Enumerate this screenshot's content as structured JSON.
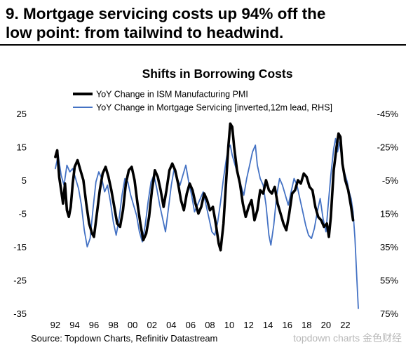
{
  "headline": {
    "line1": "9. Mortgage servicing costs up 94% off the",
    "line2": "low point: from tailwind to headwind."
  },
  "source": "Source: Topdown Charts, Refinitiv Datastream",
  "watermark": "topdown charts 金色财经",
  "chart_data": {
    "type": "line",
    "title": "Shifts in Borrowing Costs",
    "x_tick_labels": [
      "92",
      "94",
      "96",
      "98",
      "00",
      "02",
      "04",
      "06",
      "08",
      "10",
      "12",
      "14",
      "16",
      "18",
      "20",
      "22"
    ],
    "xlim": [
      1991.5,
      2024.0
    ],
    "ylim_left": [
      -35,
      25
    ],
    "yticks_left": [
      25,
      15,
      5,
      -5,
      -15,
      -25,
      -35
    ],
    "ylim_right": [
      75,
      -45
    ],
    "yticks_right_labels": [
      "-45%",
      "-25%",
      "-5%",
      "15%",
      "35%",
      "55%",
      "75%"
    ],
    "right_axis_inverted": true,
    "grid": false,
    "legend_position": "top",
    "series": [
      {
        "name": "YoY Change in ISM Manufacturing PMI",
        "axis": "left",
        "color": "#000000",
        "points": [
          [
            1992.0,
            12
          ],
          [
            1992.2,
            14
          ],
          [
            1992.4,
            6
          ],
          [
            1992.6,
            2
          ],
          [
            1992.8,
            -2
          ],
          [
            1993.0,
            4
          ],
          [
            1993.2,
            -4
          ],
          [
            1993.4,
            -6
          ],
          [
            1993.6,
            -3
          ],
          [
            1993.8,
            4
          ],
          [
            1994.0,
            9
          ],
          [
            1994.3,
            11
          ],
          [
            1994.6,
            8
          ],
          [
            1994.9,
            5
          ],
          [
            1995.2,
            -2
          ],
          [
            1995.5,
            -8
          ],
          [
            1995.8,
            -11
          ],
          [
            1996.0,
            -12
          ],
          [
            1996.3,
            -5
          ],
          [
            1996.6,
            2
          ],
          [
            1996.9,
            7
          ],
          [
            1997.2,
            9
          ],
          [
            1997.5,
            6
          ],
          [
            1997.8,
            2
          ],
          [
            1998.1,
            -3
          ],
          [
            1998.4,
            -8
          ],
          [
            1998.7,
            -9
          ],
          [
            1999.0,
            -4
          ],
          [
            1999.3,
            4
          ],
          [
            1999.6,
            8
          ],
          [
            1999.9,
            9
          ],
          [
            2000.2,
            5
          ],
          [
            2000.5,
            -2
          ],
          [
            2000.8,
            -8
          ],
          [
            2001.1,
            -13
          ],
          [
            2001.4,
            -11
          ],
          [
            2001.7,
            -6
          ],
          [
            2002.0,
            2
          ],
          [
            2002.3,
            8
          ],
          [
            2002.6,
            6
          ],
          [
            2002.9,
            2
          ],
          [
            2003.2,
            -3
          ],
          [
            2003.5,
            2
          ],
          [
            2003.8,
            8
          ],
          [
            2004.1,
            10
          ],
          [
            2004.4,
            8
          ],
          [
            2004.7,
            4
          ],
          [
            2005.0,
            -1
          ],
          [
            2005.3,
            -4
          ],
          [
            2005.6,
            1
          ],
          [
            2005.9,
            4
          ],
          [
            2006.2,
            2
          ],
          [
            2006.5,
            -2
          ],
          [
            2006.8,
            -5
          ],
          [
            2007.1,
            -3
          ],
          [
            2007.4,
            1
          ],
          [
            2007.7,
            -1
          ],
          [
            2008.0,
            -4
          ],
          [
            2008.3,
            -3
          ],
          [
            2008.6,
            -8
          ],
          [
            2008.9,
            -14
          ],
          [
            2009.1,
            -16
          ],
          [
            2009.4,
            -8
          ],
          [
            2009.7,
            6
          ],
          [
            2009.9,
            15
          ],
          [
            2010.1,
            22
          ],
          [
            2010.3,
            21
          ],
          [
            2010.5,
            15
          ],
          [
            2010.8,
            8
          ],
          [
            2011.1,
            4
          ],
          [
            2011.4,
            -2
          ],
          [
            2011.7,
            -6
          ],
          [
            2012.0,
            -3
          ],
          [
            2012.3,
            -1
          ],
          [
            2012.6,
            -7
          ],
          [
            2012.9,
            -4
          ],
          [
            2013.2,
            2
          ],
          [
            2013.5,
            1
          ],
          [
            2013.8,
            5
          ],
          [
            2014.1,
            2
          ],
          [
            2014.4,
            1
          ],
          [
            2014.7,
            3
          ],
          [
            2015.0,
            -2
          ],
          [
            2015.3,
            -5
          ],
          [
            2015.6,
            -8
          ],
          [
            2015.9,
            -10
          ],
          [
            2016.2,
            -5
          ],
          [
            2016.5,
            1
          ],
          [
            2016.8,
            2
          ],
          [
            2017.1,
            5
          ],
          [
            2017.4,
            4
          ],
          [
            2017.7,
            7
          ],
          [
            2018.0,
            6
          ],
          [
            2018.3,
            3
          ],
          [
            2018.6,
            2
          ],
          [
            2018.9,
            -3
          ],
          [
            2019.2,
            -6
          ],
          [
            2019.5,
            -7
          ],
          [
            2019.8,
            -9
          ],
          [
            2020.1,
            -8
          ],
          [
            2020.3,
            -12
          ],
          [
            2020.5,
            -6
          ],
          [
            2020.8,
            8
          ],
          [
            2021.1,
            15
          ],
          [
            2021.3,
            19
          ],
          [
            2021.5,
            18
          ],
          [
            2021.7,
            10
          ],
          [
            2022.0,
            5
          ],
          [
            2022.3,
            2
          ],
          [
            2022.6,
            -3
          ],
          [
            2022.8,
            -7
          ]
        ]
      },
      {
        "name": "YoY Change in Mortgage Servicing [inverted,12m lead, RHS]",
        "axis": "right",
        "color": "#4472c4",
        "points": [
          [
            1992.0,
            -12
          ],
          [
            1992.3,
            -20
          ],
          [
            1992.6,
            -8
          ],
          [
            1992.9,
            -2
          ],
          [
            1993.2,
            -14
          ],
          [
            1993.5,
            -10
          ],
          [
            1993.8,
            -12
          ],
          [
            1994.1,
            -6
          ],
          [
            1994.4,
            0
          ],
          [
            1994.7,
            10
          ],
          [
            1995.0,
            25
          ],
          [
            1995.3,
            35
          ],
          [
            1995.6,
            30
          ],
          [
            1995.9,
            12
          ],
          [
            1996.2,
            -4
          ],
          [
            1996.5,
            -10
          ],
          [
            1996.8,
            -6
          ],
          [
            1997.1,
            2
          ],
          [
            1997.4,
            -2
          ],
          [
            1997.7,
            8
          ],
          [
            1998.0,
            20
          ],
          [
            1998.3,
            28
          ],
          [
            1998.6,
            18
          ],
          [
            1998.9,
            4
          ],
          [
            1999.2,
            -6
          ],
          [
            1999.5,
            -4
          ],
          [
            1999.8,
            4
          ],
          [
            2000.1,
            10
          ],
          [
            2000.4,
            16
          ],
          [
            2000.7,
            26
          ],
          [
            2001.0,
            32
          ],
          [
            2001.3,
            22
          ],
          [
            2001.6,
            8
          ],
          [
            2001.9,
            -4
          ],
          [
            2002.2,
            -8
          ],
          [
            2002.5,
            0
          ],
          [
            2002.8,
            10
          ],
          [
            2003.1,
            18
          ],
          [
            2003.4,
            26
          ],
          [
            2003.7,
            12
          ],
          [
            2004.0,
            -2
          ],
          [
            2004.3,
            -12
          ],
          [
            2004.6,
            -6
          ],
          [
            2004.9,
            -2
          ],
          [
            2005.2,
            -8
          ],
          [
            2005.5,
            -14
          ],
          [
            2005.8,
            -4
          ],
          [
            2006.1,
            4
          ],
          [
            2006.4,
            14
          ],
          [
            2006.7,
            10
          ],
          [
            2007.0,
            6
          ],
          [
            2007.3,
            2
          ],
          [
            2007.6,
            10
          ],
          [
            2007.9,
            18
          ],
          [
            2008.2,
            26
          ],
          [
            2008.5,
            28
          ],
          [
            2008.8,
            20
          ],
          [
            2009.1,
            8
          ],
          [
            2009.4,
            -6
          ],
          [
            2009.7,
            -18
          ],
          [
            2009.9,
            -24
          ],
          [
            2010.1,
            -26
          ],
          [
            2010.3,
            -20
          ],
          [
            2010.6,
            -14
          ],
          [
            2010.9,
            -8
          ],
          [
            2011.2,
            -2
          ],
          [
            2011.5,
            4
          ],
          [
            2011.8,
            -6
          ],
          [
            2012.1,
            -14
          ],
          [
            2012.4,
            -22
          ],
          [
            2012.7,
            -26
          ],
          [
            2012.9,
            -14
          ],
          [
            2013.2,
            -6
          ],
          [
            2013.5,
            -2
          ],
          [
            2013.8,
            10
          ],
          [
            2014.1,
            28
          ],
          [
            2014.3,
            34
          ],
          [
            2014.6,
            22
          ],
          [
            2014.9,
            4
          ],
          [
            2015.2,
            -6
          ],
          [
            2015.5,
            -2
          ],
          [
            2015.8,
            4
          ],
          [
            2016.1,
            10
          ],
          [
            2016.4,
            2
          ],
          [
            2016.7,
            -6
          ],
          [
            2017.0,
            -2
          ],
          [
            2017.3,
            6
          ],
          [
            2017.6,
            14
          ],
          [
            2017.9,
            22
          ],
          [
            2018.2,
            28
          ],
          [
            2018.5,
            30
          ],
          [
            2018.8,
            24
          ],
          [
            2019.1,
            14
          ],
          [
            2019.4,
            6
          ],
          [
            2019.7,
            18
          ],
          [
            2020.0,
            26
          ],
          [
            2020.2,
            12
          ],
          [
            2020.5,
            -8
          ],
          [
            2020.8,
            -24
          ],
          [
            2021.0,
            -30
          ],
          [
            2021.2,
            -22
          ],
          [
            2021.4,
            -28
          ],
          [
            2021.6,
            -20
          ],
          [
            2021.8,
            -12
          ],
          [
            2022.0,
            -8
          ],
          [
            2022.2,
            -4
          ],
          [
            2022.4,
            2
          ],
          [
            2022.6,
            6
          ],
          [
            2022.8,
            14
          ],
          [
            2023.0,
            30
          ],
          [
            2023.2,
            55
          ],
          [
            2023.35,
            72
          ]
        ]
      }
    ]
  }
}
